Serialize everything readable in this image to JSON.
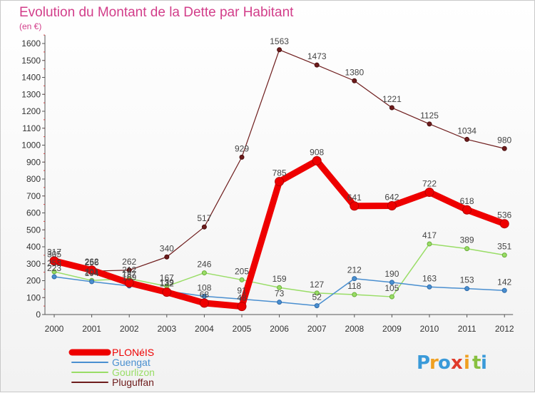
{
  "chart_data": {
    "type": "line",
    "title": "Evolution du Montant de la Dette par Habitant",
    "unit_label": "(en €)",
    "x": [
      "2000",
      "2001",
      "2002",
      "2003",
      "2004",
      "2005",
      "2006",
      "2007",
      "2008",
      "2009",
      "2010",
      "2011",
      "2012"
    ],
    "yticks": [
      0,
      100,
      200,
      300,
      400,
      500,
      600,
      700,
      800,
      900,
      1000,
      1100,
      1200,
      1300,
      1400,
      1500,
      1600
    ],
    "ylim": [
      0,
      1650
    ],
    "grid": false,
    "legend_position": "bottom-left",
    "series": [
      {
        "name": "PLONéIS",
        "color": "#ee0000",
        "values": [
          317,
          262,
          187,
          132,
          68,
          48,
          785,
          908,
          641,
          642,
          722,
          618,
          536
        ]
      },
      {
        "name": "Guengat",
        "color": "#4a8fd0",
        "values": [
          223,
          194,
          169,
          139,
          108,
          91,
          73,
          52,
          212,
          190,
          163,
          153,
          142
        ]
      },
      {
        "name": "Gourlizon",
        "color": "#99dd66",
        "values": [
          253,
          201,
          212,
          167,
          246,
          205,
          159,
          127,
          118,
          105,
          417,
          389,
          351
        ]
      },
      {
        "name": "Pluguffan",
        "color": "#6e1c1c",
        "values": [
          305,
          256,
          262,
          340,
          517,
          929,
          1563,
          1473,
          1380,
          1221,
          1125,
          1034,
          980
        ]
      }
    ]
  },
  "logo": {
    "letters": [
      "P",
      "r",
      "o",
      "x",
      "i",
      "t",
      "i"
    ],
    "colors": [
      "#3a9ad9",
      "#f0a020",
      "#3a9ad9",
      "#e03b2b",
      "#f0a020",
      "#88c040",
      "#3a9ad9"
    ]
  }
}
